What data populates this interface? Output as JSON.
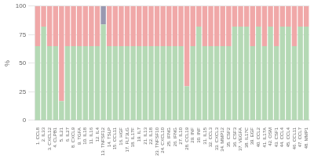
{
  "chart_data": {
    "type": "bar",
    "stacked": true,
    "ylabel": "%",
    "categories": [
      "1. CCL8",
      "2. IL33",
      "3. CXCL12",
      "4. CLPB1",
      "5. IL21",
      "6. IL27",
      "8. CXCL9",
      "9. TGFA",
      "10. IL18",
      "11. IL16",
      "12. IL4",
      "13. TNFSF12",
      "14. TSLP",
      "15. CCL11",
      "16. HGF",
      "17. FLT3LG",
      "18. IL17F",
      "19. IL7",
      "21. IL13",
      "22. IL18",
      "23. TNFSF10",
      "24. CXCL10",
      "25. IFNG",
      "26. IFNG",
      "27. IL10",
      "28. CCL19",
      "29. INF",
      "30. INF",
      "31. IL15",
      "32. CCL3",
      "33. CXCL3",
      "34. MMP12",
      "35. CSF2",
      "36. CSF3",
      "37. VEGFA",
      "38. IL17C",
      "39. EGF",
      "40. CCL2",
      "41. IL17A",
      "42. OSM",
      "43. CSF1",
      "44. CCL4",
      "45. CCL4",
      "46. CCL11",
      "47. CCL7",
      "48. MMP1"
    ],
    "series": [
      {
        "color": "#b5d9b5",
        "values": [
          65,
          82,
          65,
          65,
          17,
          65,
          65,
          65,
          65,
          65,
          65,
          84,
          65,
          65,
          65,
          65,
          65,
          65,
          65,
          65,
          65,
          65,
          65,
          65,
          65,
          30,
          65,
          82,
          65,
          65,
          65,
          65,
          65,
          82,
          82,
          82,
          65,
          82,
          65,
          82,
          65,
          82,
          82,
          65,
          82,
          82
        ]
      },
      {
        "color": "#f0a8a8",
        "values": [
          35,
          18,
          35,
          35,
          83,
          35,
          35,
          35,
          35,
          35,
          35,
          0,
          35,
          35,
          35,
          35,
          35,
          35,
          35,
          35,
          35,
          35,
          35,
          35,
          35,
          70,
          35,
          18,
          35,
          35,
          35,
          35,
          35,
          18,
          18,
          18,
          35,
          18,
          35,
          18,
          35,
          18,
          18,
          35,
          18,
          18
        ]
      },
      {
        "color": "#9898b0",
        "values": [
          0,
          0,
          0,
          0,
          0,
          0,
          0,
          0,
          0,
          0,
          0,
          16,
          0,
          0,
          0,
          0,
          0,
          0,
          0,
          0,
          0,
          0,
          0,
          0,
          0,
          0,
          0,
          0,
          0,
          0,
          0,
          0,
          0,
          0,
          0,
          0,
          0,
          0,
          0,
          0,
          0,
          0,
          0,
          0,
          0,
          0
        ]
      }
    ],
    "ylim": [
      0,
      100
    ],
    "yticks": [
      0,
      25,
      50,
      75,
      100
    ],
    "grid": true
  }
}
